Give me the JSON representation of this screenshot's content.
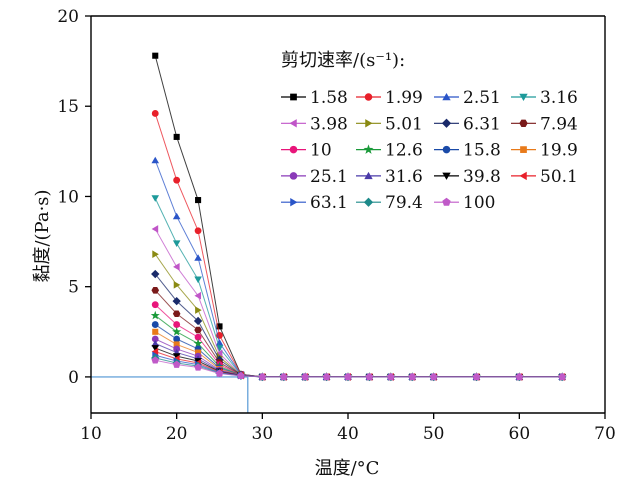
{
  "chart_data": {
    "type": "line",
    "xlabel": "温度/°C",
    "ylabel": "黏度/(Pa·s)",
    "xlim": [
      10,
      70
    ],
    "ylim": [
      -2,
      20
    ],
    "xticks": [
      "10",
      "20",
      "30",
      "40",
      "50",
      "60",
      "70"
    ],
    "yticks": [
      "0",
      "5",
      "10",
      "15",
      "20"
    ],
    "legend_title": "剪切速率/(s⁻¹):",
    "legend_placement": "top-right",
    "grid": false,
    "x": [
      17.5,
      20,
      22.5,
      25,
      27.5,
      30,
      32.5,
      35,
      37.5,
      40,
      42.5,
      45,
      47.5,
      50,
      55,
      60,
      65
    ],
    "reference_lines": {
      "y": 0,
      "x": 28.3,
      "color": "#6fa8dc"
    },
    "series": [
      {
        "name": "1.58",
        "marker": "square",
        "color": "#000000",
        "values": [
          17.8,
          13.3,
          9.8,
          2.8,
          0.15,
          0,
          0,
          0,
          0,
          0,
          0,
          0,
          0,
          0,
          0,
          0,
          0
        ]
      },
      {
        "name": "1.99",
        "marker": "circle",
        "color": "#e8202a",
        "values": [
          14.6,
          10.9,
          8.1,
          2.3,
          0.15,
          0,
          0,
          0,
          0,
          0,
          0,
          0,
          0,
          0,
          0,
          0,
          0
        ]
      },
      {
        "name": "2.51",
        "marker": "triangle-up",
        "color": "#2a55c8",
        "values": [
          12.0,
          8.9,
          6.6,
          1.9,
          0.14,
          0,
          0,
          0,
          0,
          0,
          0,
          0,
          0,
          0,
          0,
          0,
          0
        ]
      },
      {
        "name": "3.16",
        "marker": "triangle-down",
        "color": "#1d9a9a",
        "values": [
          9.9,
          7.4,
          5.4,
          1.6,
          0.13,
          0,
          0,
          0,
          0,
          0,
          0,
          0,
          0,
          0,
          0,
          0,
          0
        ]
      },
      {
        "name": "3.98",
        "marker": "triangle-left",
        "color": "#c055c8",
        "values": [
          8.2,
          6.1,
          4.5,
          1.3,
          0.13,
          0,
          0,
          0,
          0,
          0,
          0,
          0,
          0,
          0,
          0,
          0,
          0
        ]
      },
      {
        "name": "5.01",
        "marker": "triangle-right",
        "color": "#8a8a12",
        "values": [
          6.8,
          5.1,
          3.7,
          1.1,
          0.12,
          0,
          0,
          0,
          0,
          0,
          0,
          0,
          0,
          0,
          0,
          0,
          0
        ]
      },
      {
        "name": "6.31",
        "marker": "diamond",
        "color": "#1a2a6a",
        "values": [
          5.7,
          4.2,
          3.1,
          0.95,
          0.12,
          0,
          0,
          0,
          0,
          0,
          0,
          0,
          0,
          0,
          0,
          0,
          0
        ]
      },
      {
        "name": "7.94",
        "marker": "hexagon",
        "color": "#7a1a1a",
        "values": [
          4.8,
          3.5,
          2.6,
          0.8,
          0.11,
          0,
          0,
          0,
          0,
          0,
          0,
          0,
          0,
          0,
          0,
          0,
          0
        ]
      },
      {
        "name": "10",
        "marker": "circle",
        "color": "#e8157a",
        "values": [
          4.0,
          2.9,
          2.2,
          0.68,
          0.11,
          0,
          0,
          0,
          0,
          0,
          0,
          0,
          0,
          0,
          0,
          0,
          0
        ]
      },
      {
        "name": "12.6",
        "marker": "star",
        "color": "#1a9a3a",
        "values": [
          3.4,
          2.5,
          1.85,
          0.58,
          0.1,
          0,
          0,
          0,
          0,
          0,
          0,
          0,
          0,
          0,
          0,
          0,
          0
        ]
      },
      {
        "name": "15.8",
        "marker": "circle",
        "color": "#1a4aa8",
        "values": [
          2.9,
          2.1,
          1.55,
          0.5,
          0.1,
          0,
          0,
          0,
          0,
          0,
          0,
          0,
          0,
          0,
          0,
          0,
          0
        ]
      },
      {
        "name": "19.9",
        "marker": "square",
        "color": "#e87a1a",
        "values": [
          2.5,
          1.8,
          1.35,
          0.44,
          0.09,
          0,
          0,
          0,
          0,
          0,
          0,
          0,
          0,
          0,
          0,
          0,
          0
        ]
      },
      {
        "name": "25.1",
        "marker": "circle",
        "color": "#8a3ab8",
        "values": [
          2.1,
          1.55,
          1.15,
          0.38,
          0.09,
          0,
          0,
          0,
          0,
          0,
          0,
          0,
          0,
          0,
          0,
          0,
          0
        ]
      },
      {
        "name": "31.6",
        "marker": "triangle-up",
        "color": "#4a3aa8",
        "values": [
          1.85,
          1.35,
          1.0,
          0.34,
          0.08,
          0,
          0,
          0,
          0,
          0,
          0,
          0,
          0,
          0,
          0,
          0,
          0
        ]
      },
      {
        "name": "39.8",
        "marker": "triangle-down",
        "color": "#000000",
        "values": [
          1.6,
          1.15,
          0.88,
          0.3,
          0.08,
          0,
          0,
          0,
          0,
          0,
          0,
          0,
          0,
          0,
          0,
          0,
          0
        ]
      },
      {
        "name": "50.1",
        "marker": "triangle-left",
        "color": "#e8202a",
        "values": [
          1.4,
          1.0,
          0.77,
          0.27,
          0.07,
          0,
          0,
          0,
          0,
          0,
          0,
          0,
          0,
          0,
          0,
          0,
          0
        ]
      },
      {
        "name": "63.1",
        "marker": "triangle-right",
        "color": "#2a55c8",
        "values": [
          1.2,
          0.88,
          0.68,
          0.24,
          0.07,
          0,
          0,
          0,
          0,
          0,
          0,
          0,
          0,
          0,
          0,
          0,
          0
        ]
      },
      {
        "name": "79.4",
        "marker": "diamond",
        "color": "#1d8a8a",
        "values": [
          1.05,
          0.77,
          0.6,
          0.21,
          0.06,
          0,
          0,
          0,
          0,
          0,
          0,
          0,
          0,
          0,
          0,
          0,
          0
        ]
      },
      {
        "name": "100",
        "marker": "pentagon",
        "color": "#c05ac8",
        "values": [
          0.92,
          0.68,
          0.53,
          0.19,
          0.06,
          0,
          0,
          0,
          0,
          0,
          0,
          0,
          0,
          0,
          0,
          0,
          0
        ]
      }
    ]
  }
}
